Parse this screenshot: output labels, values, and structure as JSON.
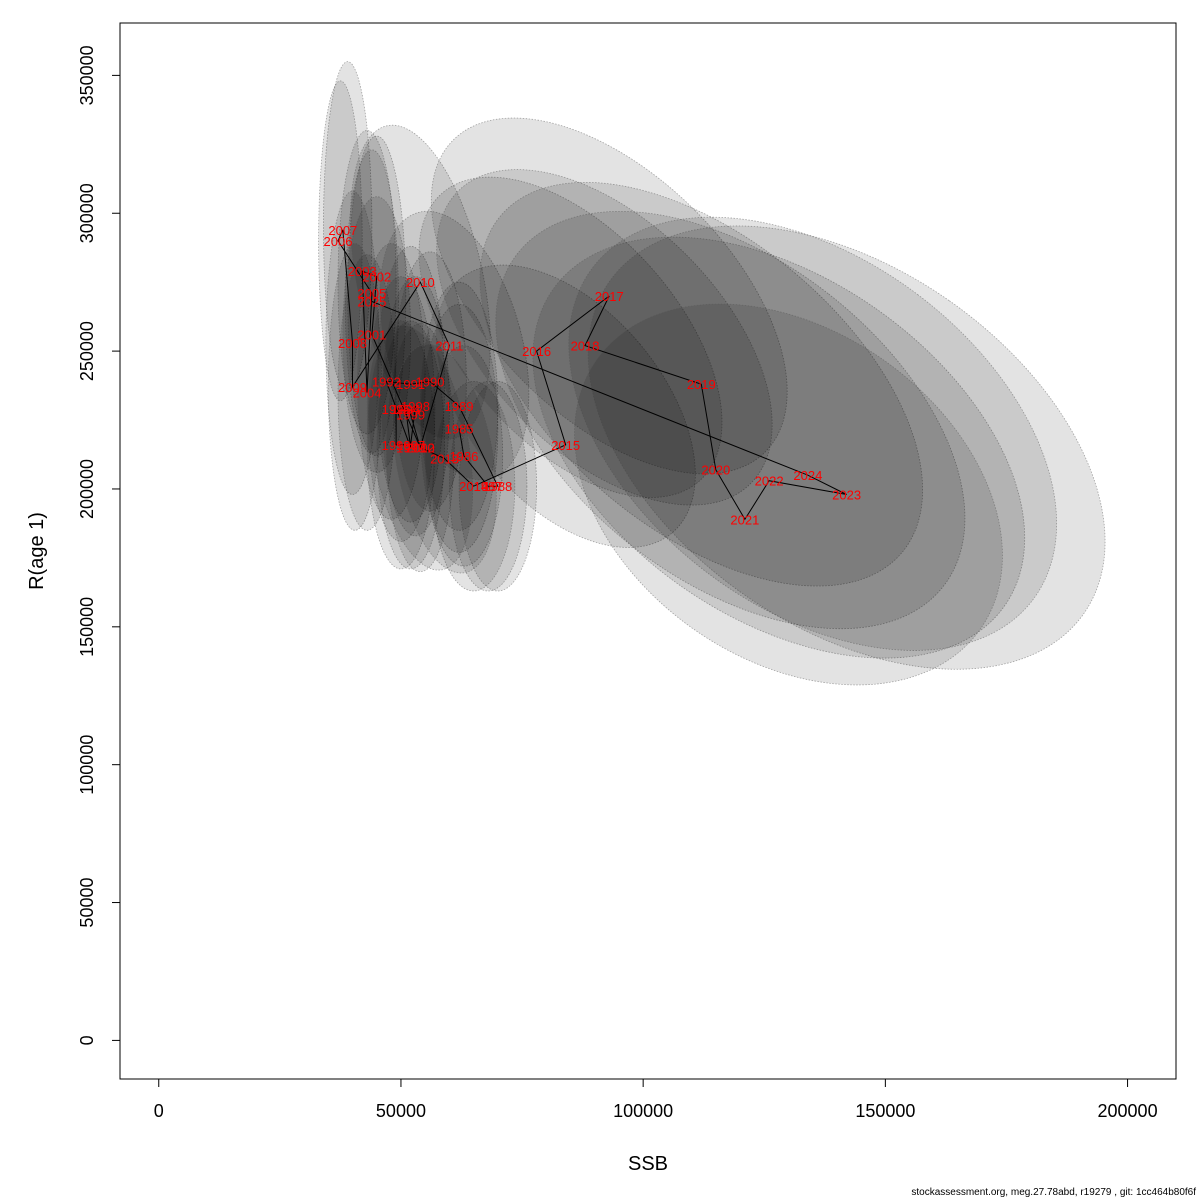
{
  "chart_data": {
    "type": "scatter",
    "xlabel": "SSB",
    "ylabel": "R(age 1)",
    "xlim": [
      -8000,
      210000
    ],
    "ylim": [
      -14000,
      369000
    ],
    "xticks": [
      0,
      50000,
      100000,
      150000,
      200000
    ],
    "yticks": [
      0,
      50000,
      100000,
      150000,
      200000,
      250000,
      300000,
      350000
    ],
    "xtick_labels": [
      "0",
      "50000",
      "100000",
      "150000",
      "200000"
    ],
    "ytick_labels": [
      "0",
      "50000",
      "100000",
      "150000",
      "200000",
      "250000",
      "300000",
      "350000"
    ],
    "grid": false,
    "point_label_color": "#ff0000",
    "line_color": "#000000",
    "ellipse_fill": "#000000",
    "ellipse_opacity": 0.11,
    "points": [
      {
        "year": "1985",
        "x": 62000,
        "y": 222000
      },
      {
        "year": "1986",
        "x": 63000,
        "y": 212000
      },
      {
        "year": "1987",
        "x": 68000,
        "y": 201000
      },
      {
        "year": "1988",
        "x": 70000,
        "y": 201000
      },
      {
        "year": "1989",
        "x": 62000,
        "y": 230000
      },
      {
        "year": "1990",
        "x": 56000,
        "y": 239000
      },
      {
        "year": "1991",
        "x": 52000,
        "y": 238000
      },
      {
        "year": "1992",
        "x": 47000,
        "y": 239000
      },
      {
        "year": "1993",
        "x": 52000,
        "y": 215000
      },
      {
        "year": "1994",
        "x": 51000,
        "y": 229000
      },
      {
        "year": "1995",
        "x": 49000,
        "y": 229000
      },
      {
        "year": "1996",
        "x": 49000,
        "y": 216000
      },
      {
        "year": "1997",
        "x": 52000,
        "y": 216000
      },
      {
        "year": "1998",
        "x": 53000,
        "y": 230000
      },
      {
        "year": "1999",
        "x": 52000,
        "y": 227000
      },
      {
        "year": "2000",
        "x": 54000,
        "y": 215000
      },
      {
        "year": "2001",
        "x": 44000,
        "y": 256000
      },
      {
        "year": "2002",
        "x": 45000,
        "y": 277000
      },
      {
        "year": "2003",
        "x": 42000,
        "y": 279000
      },
      {
        "year": "2004",
        "x": 43000,
        "y": 235000
      },
      {
        "year": "2005",
        "x": 44000,
        "y": 271000
      },
      {
        "year": "2006",
        "x": 37000,
        "y": 290000
      },
      {
        "year": "2007",
        "x": 38000,
        "y": 294000
      },
      {
        "year": "2008",
        "x": 40000,
        "y": 253000
      },
      {
        "year": "2009",
        "x": 40000,
        "y": 237000
      },
      {
        "year": "2010",
        "x": 54000,
        "y": 275000
      },
      {
        "year": "2011",
        "x": 60000,
        "y": 252000
      },
      {
        "year": "2012",
        "x": 54000,
        "y": 215000
      },
      {
        "year": "2013",
        "x": 59000,
        "y": 211000
      },
      {
        "year": "2014",
        "x": 65000,
        "y": 201000
      },
      {
        "year": "2015",
        "x": 84000,
        "y": 216000
      },
      {
        "year": "2016",
        "x": 78000,
        "y": 250000
      },
      {
        "year": "2017",
        "x": 93000,
        "y": 270000
      },
      {
        "year": "2018",
        "x": 88000,
        "y": 252000
      },
      {
        "year": "2019",
        "x": 112000,
        "y": 238000
      },
      {
        "year": "2020",
        "x": 115000,
        "y": 207000
      },
      {
        "year": "2021",
        "x": 121000,
        "y": 189000
      },
      {
        "year": "2022",
        "x": 126000,
        "y": 203000
      },
      {
        "year": "2023",
        "x": 142000,
        "y": 198000
      },
      {
        "year": "2024",
        "x": 134000,
        "y": 205000
      },
      {
        "year": "2025",
        "x": 44000,
        "y": 268000
      }
    ],
    "ellipses": [
      {
        "cx": 39000,
        "cy": 295000,
        "rx": 5000,
        "ry": 60000,
        "rot": 0
      },
      {
        "cx": 37500,
        "cy": 290000,
        "rx": 4500,
        "ry": 58000,
        "rot": 0
      },
      {
        "cx": 43000,
        "cy": 275000,
        "rx": 6000,
        "ry": 55000,
        "rot": 0
      },
      {
        "cx": 45000,
        "cy": 270000,
        "rx": 6000,
        "ry": 58000,
        "rot": 0
      },
      {
        "cx": 44000,
        "cy": 268000,
        "rx": 5500,
        "ry": 55000,
        "rot": 0
      },
      {
        "cx": 40000,
        "cy": 253000,
        "rx": 5500,
        "ry": 55000,
        "rot": 0
      },
      {
        "cx": 40500,
        "cy": 237000,
        "rx": 5500,
        "ry": 52000,
        "rot": 0
      },
      {
        "cx": 43000,
        "cy": 235000,
        "rx": 6000,
        "ry": 50000,
        "rot": 0
      },
      {
        "cx": 45000,
        "cy": 256000,
        "rx": 7000,
        "ry": 50000,
        "rot": 0
      },
      {
        "cx": 48000,
        "cy": 239000,
        "rx": 7000,
        "ry": 50000,
        "rot": 0
      },
      {
        "cx": 52000,
        "cy": 238000,
        "rx": 7000,
        "ry": 50000,
        "rot": 0
      },
      {
        "cx": 50000,
        "cy": 229000,
        "rx": 7000,
        "ry": 48000,
        "rot": 0
      },
      {
        "cx": 50000,
        "cy": 216000,
        "rx": 7000,
        "ry": 45000,
        "rot": 0
      },
      {
        "cx": 52000,
        "cy": 216000,
        "rx": 7000,
        "ry": 45000,
        "rot": 0
      },
      {
        "cx": 53000,
        "cy": 230000,
        "rx": 7000,
        "ry": 47000,
        "rot": 0
      },
      {
        "cx": 54000,
        "cy": 215000,
        "rx": 7000,
        "ry": 45000,
        "rot": 0
      },
      {
        "cx": 56000,
        "cy": 239000,
        "rx": 7500,
        "ry": 47000,
        "rot": 0
      },
      {
        "cx": 62000,
        "cy": 230000,
        "rx": 8000,
        "ry": 45000,
        "rot": 0
      },
      {
        "cx": 62000,
        "cy": 222000,
        "rx": 8000,
        "ry": 45000,
        "rot": 0
      },
      {
        "cx": 63000,
        "cy": 212000,
        "rx": 8000,
        "ry": 40000,
        "rot": 0
      },
      {
        "cx": 68000,
        "cy": 201000,
        "rx": 8000,
        "ry": 38000,
        "rot": 0
      },
      {
        "cx": 70000,
        "cy": 201000,
        "rx": 8000,
        "ry": 38000,
        "rot": 0
      },
      {
        "cx": 65000,
        "cy": 201000,
        "rx": 8500,
        "ry": 38000,
        "rot": 0
      },
      {
        "cx": 54000,
        "cy": 275000,
        "rx": 13000,
        "ry": 58000,
        "rot": 12
      },
      {
        "cx": 61000,
        "cy": 252000,
        "rx": 14000,
        "ry": 50000,
        "rot": 15
      },
      {
        "cx": 54000,
        "cy": 215000,
        "rx": 10000,
        "ry": 45000,
        "rot": 10
      },
      {
        "cx": 59000,
        "cy": 211000,
        "rx": 10000,
        "ry": 42000,
        "rot": 10
      },
      {
        "cx": 84000,
        "cy": 230000,
        "rx": 20000,
        "ry": 60000,
        "rot": 40
      },
      {
        "cx": 85000,
        "cy": 255000,
        "rx": 22000,
        "ry": 70000,
        "rot": 42
      },
      {
        "cx": 93000,
        "cy": 270000,
        "rx": 25000,
        "ry": 80000,
        "rot": 45
      },
      {
        "cx": 92000,
        "cy": 255000,
        "rx": 24000,
        "ry": 75000,
        "rot": 45
      },
      {
        "cx": 112000,
        "cy": 238000,
        "rx": 30000,
        "ry": 95000,
        "rot": 50
      },
      {
        "cx": 118000,
        "cy": 225000,
        "rx": 33000,
        "ry": 98000,
        "rot": 52
      },
      {
        "cx": 128000,
        "cy": 215000,
        "rx": 35000,
        "ry": 100000,
        "rot": 55
      },
      {
        "cx": 142000,
        "cy": 215000,
        "rx": 37000,
        "ry": 105000,
        "rot": 55
      },
      {
        "cx": 135000,
        "cy": 220000,
        "rx": 36000,
        "ry": 100000,
        "rot": 53
      },
      {
        "cx": 130000,
        "cy": 198000,
        "rx": 34000,
        "ry": 85000,
        "rot": 55
      }
    ]
  },
  "footer": {
    "text": "stockassessment.org, meg.27.78abd, r19279 , git: 1cc464b80f6f"
  }
}
